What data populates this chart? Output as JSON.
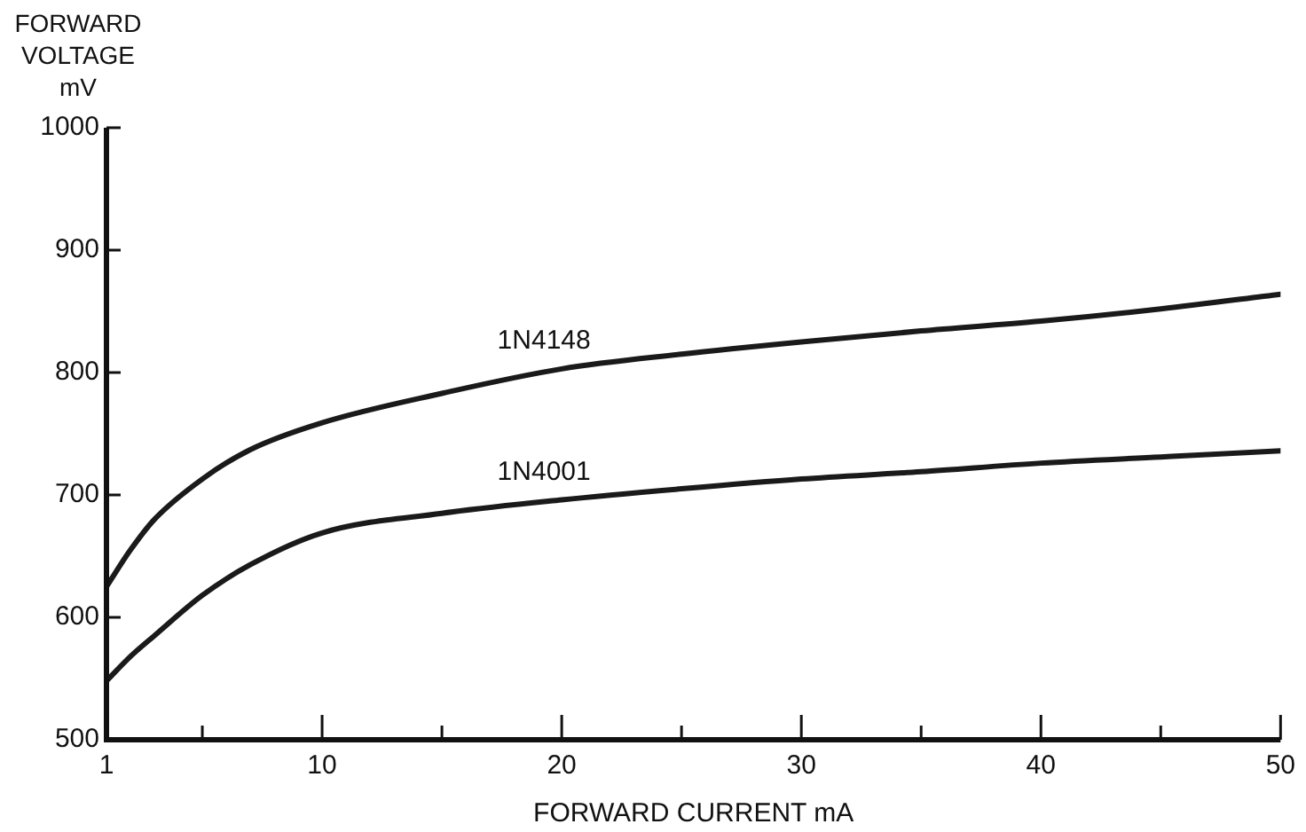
{
  "chart_data": {
    "type": "line",
    "xlabel": "FORWARD CURRENT mA",
    "ylabel": "FORWARD VOLTAGE mV",
    "xlim": [
      1,
      50
    ],
    "xticks": [
      1,
      {
        "value": 5,
        "label": null
      },
      10,
      {
        "value": 15,
        "label": null
      },
      20,
      {
        "value": 25,
        "label": null
      },
      30,
      {
        "value": 35,
        "label": null
      },
      40,
      {
        "value": 45,
        "label": null
      },
      50
    ],
    "ylim": [
      500,
      1000
    ],
    "yticks": [
      500,
      600,
      700,
      800,
      900,
      1000
    ],
    "x": [
      1,
      2,
      3,
      5,
      7,
      10,
      15,
      20,
      25,
      30,
      35,
      40,
      45,
      50
    ],
    "series": [
      {
        "name": "1N4148",
        "color": "#1a1a1a",
        "values": [
          625,
          655,
          680,
          713,
          737,
          759,
          783,
          803,
          815,
          825,
          834,
          842,
          852,
          864
        ]
      },
      {
        "name": "1N4001",
        "color": "#1a1a1a",
        "values": [
          548,
          568,
          585,
          618,
          643,
          669,
          685,
          696,
          705,
          713,
          719,
          726,
          731,
          736
        ]
      }
    ],
    "grid": false,
    "legend": false,
    "marker": "none",
    "line_style": "solid"
  }
}
